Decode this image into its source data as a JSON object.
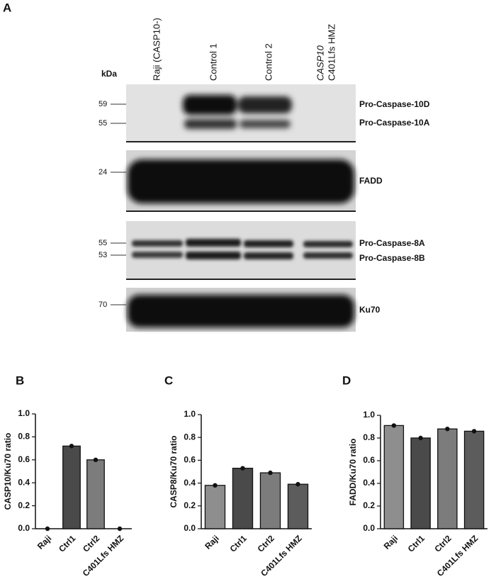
{
  "blot": {
    "panel": "A",
    "kda": "kDa",
    "lanes": [
      "Raji  (CASP10-)",
      "Control 1",
      "Control 2"
    ],
    "lane4": {
      "gene": "CASP10",
      "variant": "C401Lfs  HMZ"
    },
    "markers": [
      "59",
      "55",
      "24",
      "55",
      "53",
      "70"
    ],
    "bands": [
      "Pro-Caspase-10D",
      "Pro-Caspase-10A",
      "FADD",
      "Pro-Caspase-8A",
      "Pro-Caspase-8B",
      "Ku70"
    ]
  },
  "chart_data": [
    {
      "type": "bar",
      "panel": "B",
      "ylabel": "CASP10/Ku70 ratio",
      "categories": [
        "Raji",
        "Ctrl1",
        "Ctrl2",
        "C401Lfs HMZ"
      ],
      "values": [
        0,
        0.72,
        0.6,
        0
      ],
      "colors": [
        "#8e8e8e",
        "#4a4a4a",
        "#7c7c7c",
        "#5c5c5c"
      ],
      "points": true,
      "ylim": [
        0,
        1
      ],
      "yticks": [
        {
          "value": 0,
          "label": "0.0"
        },
        0.2,
        0.4,
        0.6,
        0.8,
        {
          "value": 1,
          "label": "1.0"
        }
      ]
    },
    {
      "type": "bar",
      "panel": "C",
      "ylabel": "CASP8/Ku70 ratio",
      "categories": [
        "Raji",
        "Ctrl1",
        "Ctrl2",
        "C401Lfs HMZ"
      ],
      "values": [
        0.38,
        0.53,
        0.49,
        0.39
      ],
      "colors": [
        "#8e8e8e",
        "#4a4a4a",
        "#7c7c7c",
        "#5c5c5c"
      ],
      "points": true,
      "ylim": [
        0,
        1
      ],
      "yticks": [
        {
          "value": 0,
          "label": "0.0"
        },
        0.2,
        0.4,
        0.6,
        0.8,
        {
          "value": 1,
          "label": "1.0"
        }
      ]
    },
    {
      "type": "bar",
      "panel": "D",
      "ylabel": "FADD/Ku70 ratio",
      "categories": [
        "Raji",
        "Ctrl1",
        "Ctrl2",
        "C401Lfs HMZ"
      ],
      "values": [
        0.91,
        0.8,
        0.88,
        0.86
      ],
      "colors": [
        "#8e8e8e",
        "#4a4a4a",
        "#7c7c7c",
        "#5c5c5c"
      ],
      "points": true,
      "ylim": [
        0,
        1
      ],
      "yticks": [
        {
          "value": 0,
          "label": "0.0"
        },
        0.2,
        0.4,
        0.6,
        0.8,
        {
          "value": 1,
          "label": "1.0"
        }
      ]
    }
  ]
}
